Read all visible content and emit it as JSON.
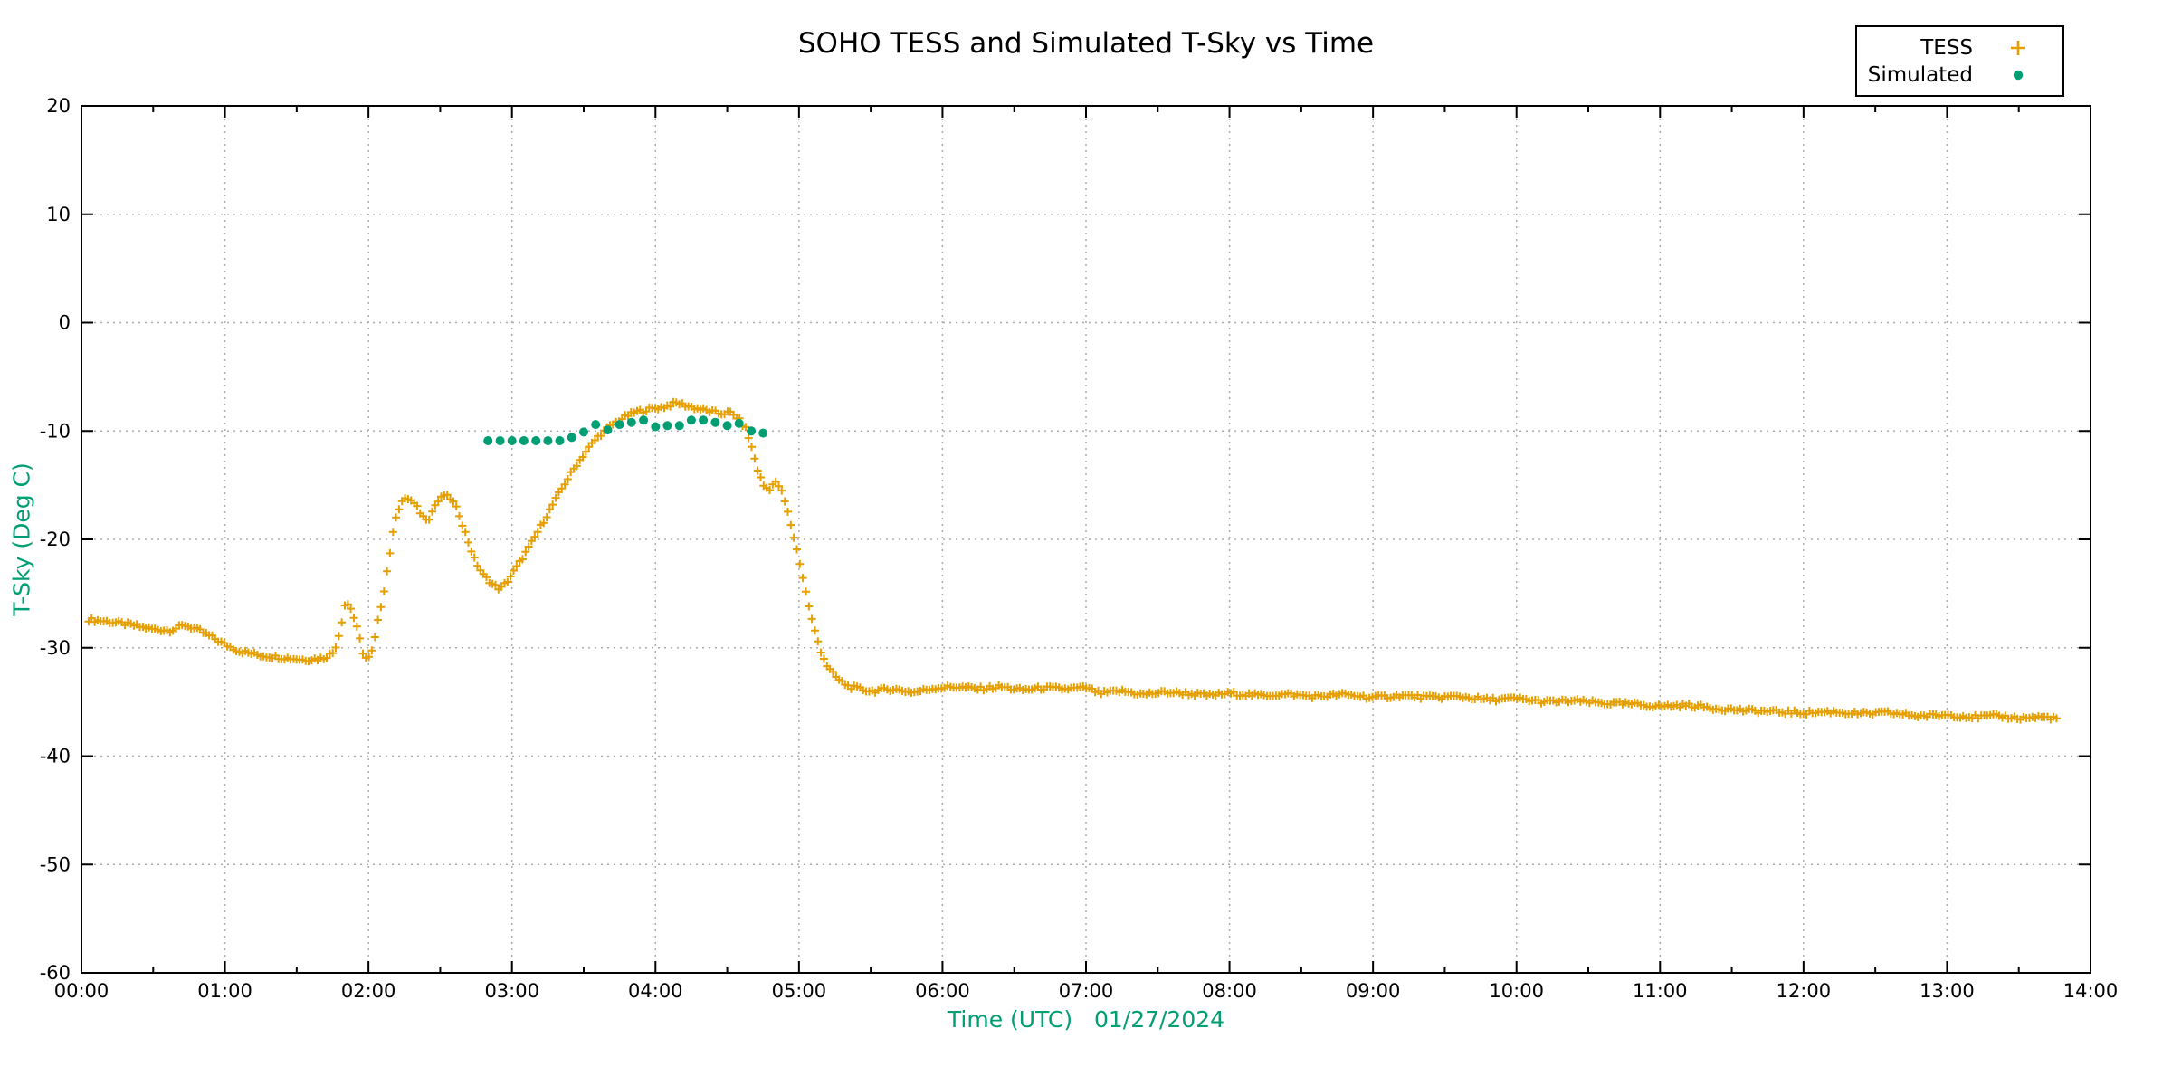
{
  "title": "SOHO TESS and Simulated T-Sky vs Time",
  "legend": {
    "entries": [
      {
        "label": "TESS",
        "marker": "plus-icon",
        "color": "#e69f00"
      },
      {
        "label": "Simulated",
        "marker": "dot-icon",
        "color": "#009e73"
      }
    ]
  },
  "axes": {
    "x": {
      "label": "Time (UTC)   01/27/2024",
      "tick_labels": [
        "00:00",
        "01:00",
        "02:00",
        "03:00",
        "04:00",
        "05:00",
        "06:00",
        "07:00",
        "08:00",
        "09:00",
        "10:00",
        "11:00",
        "12:00",
        "13:00",
        "14:00"
      ],
      "minor_ticks_per_hour": 2
    },
    "y": {
      "label": "T-Sky (Deg C)",
      "tick_values": [
        20,
        10,
        0,
        -10,
        -20,
        -30,
        -40,
        -50,
        -60
      ]
    }
  },
  "colors": {
    "tess": "#e69f00",
    "simulated": "#009e73",
    "axis_label": "#009e73",
    "grid": "#ababab",
    "border": "#000000",
    "text": "#000000"
  },
  "chart_data": {
    "type": "scatter",
    "title": "SOHO TESS and Simulated T-Sky vs Time",
    "xlabel": "Time (UTC)",
    "date_label": "01/27/2024",
    "ylabel": "T-Sky (Deg C)",
    "xlim_hours": [
      0,
      14
    ],
    "ylim": [
      -60,
      20
    ],
    "grid": true,
    "legend_position": "top-right-outside",
    "series": [
      {
        "name": "TESS",
        "marker": "plus",
        "color": "#e69f00",
        "sample_interval_hours": 0.021,
        "jitter_deg": 0.18,
        "time_start_hours": 0.05,
        "time_end_hours": 13.78,
        "keyframes_time_value": [
          [
            0.05,
            -27.4
          ],
          [
            0.2,
            -27.6
          ],
          [
            0.35,
            -27.9
          ],
          [
            0.5,
            -28.3
          ],
          [
            0.62,
            -28.4
          ],
          [
            0.72,
            -27.9
          ],
          [
            0.82,
            -28.4
          ],
          [
            0.92,
            -29.1
          ],
          [
            1.0,
            -29.7
          ],
          [
            1.1,
            -30.3
          ],
          [
            1.25,
            -30.7
          ],
          [
            1.4,
            -30.9
          ],
          [
            1.55,
            -31.1
          ],
          [
            1.68,
            -31.0
          ],
          [
            1.76,
            -30.4
          ],
          [
            1.8,
            -28.5
          ],
          [
            1.84,
            -25.7
          ],
          [
            1.88,
            -26.4
          ],
          [
            1.93,
            -28.7
          ],
          [
            1.97,
            -30.9
          ],
          [
            2.0,
            -31.0
          ],
          [
            2.03,
            -30.2
          ],
          [
            2.07,
            -27.3
          ],
          [
            2.11,
            -24.5
          ],
          [
            2.15,
            -21.2
          ],
          [
            2.19,
            -17.9
          ],
          [
            2.23,
            -16.5
          ],
          [
            2.28,
            -16.2
          ],
          [
            2.33,
            -16.9
          ],
          [
            2.38,
            -17.9
          ],
          [
            2.42,
            -18.1
          ],
          [
            2.47,
            -16.7
          ],
          [
            2.53,
            -15.9
          ],
          [
            2.58,
            -16.3
          ],
          [
            2.63,
            -17.6
          ],
          [
            2.68,
            -19.6
          ],
          [
            2.74,
            -21.9
          ],
          [
            2.8,
            -23.3
          ],
          [
            2.87,
            -24.2
          ],
          [
            2.92,
            -24.6
          ],
          [
            2.97,
            -23.8
          ],
          [
            3.05,
            -22.2
          ],
          [
            3.12,
            -20.7
          ],
          [
            3.2,
            -18.8
          ],
          [
            3.28,
            -16.9
          ],
          [
            3.36,
            -15.0
          ],
          [
            3.44,
            -13.3
          ],
          [
            3.52,
            -11.8
          ],
          [
            3.6,
            -10.5
          ],
          [
            3.68,
            -9.6
          ],
          [
            3.76,
            -8.9
          ],
          [
            3.85,
            -8.3
          ],
          [
            3.95,
            -8.0
          ],
          [
            4.05,
            -7.8
          ],
          [
            4.15,
            -7.4
          ],
          [
            4.25,
            -7.8
          ],
          [
            4.35,
            -8.1
          ],
          [
            4.45,
            -8.4
          ],
          [
            4.52,
            -8.3
          ],
          [
            4.58,
            -8.9
          ],
          [
            4.63,
            -9.8
          ],
          [
            4.67,
            -11.5
          ],
          [
            4.71,
            -13.5
          ],
          [
            4.75,
            -15.0
          ],
          [
            4.79,
            -15.4
          ],
          [
            4.83,
            -14.7
          ],
          [
            4.87,
            -15.2
          ],
          [
            4.91,
            -16.9
          ],
          [
            4.95,
            -19.0
          ],
          [
            5.0,
            -21.8
          ],
          [
            5.05,
            -25.0
          ],
          [
            5.1,
            -28.0
          ],
          [
            5.15,
            -30.2
          ],
          [
            5.2,
            -31.8
          ],
          [
            5.27,
            -32.9
          ],
          [
            5.35,
            -33.6
          ],
          [
            5.5,
            -34.0
          ],
          [
            5.65,
            -33.8
          ],
          [
            5.8,
            -34.1
          ],
          [
            5.95,
            -33.7
          ],
          [
            6.1,
            -33.6
          ],
          [
            6.25,
            -33.8
          ],
          [
            6.4,
            -33.6
          ],
          [
            6.55,
            -33.9
          ],
          [
            6.7,
            -33.7
          ],
          [
            6.85,
            -33.8
          ],
          [
            7.0,
            -33.7
          ],
          [
            7.1,
            -34.2
          ],
          [
            7.25,
            -34.0
          ],
          [
            7.4,
            -34.3
          ],
          [
            7.55,
            -34.1
          ],
          [
            7.7,
            -34.2
          ],
          [
            7.85,
            -34.4
          ],
          [
            8.0,
            -34.2
          ],
          [
            8.2,
            -34.4
          ],
          [
            8.4,
            -34.3
          ],
          [
            8.6,
            -34.5
          ],
          [
            8.8,
            -34.3
          ],
          [
            9.0,
            -34.6
          ],
          [
            9.2,
            -34.4
          ],
          [
            9.4,
            -34.6
          ],
          [
            9.6,
            -34.5
          ],
          [
            9.8,
            -34.8
          ],
          [
            10.0,
            -34.7
          ],
          [
            10.2,
            -35.0
          ],
          [
            10.4,
            -34.9
          ],
          [
            10.6,
            -35.1
          ],
          [
            10.8,
            -35.2
          ],
          [
            11.0,
            -35.4
          ],
          [
            11.2,
            -35.3
          ],
          [
            11.4,
            -35.6
          ],
          [
            11.6,
            -35.8
          ],
          [
            11.8,
            -35.9
          ],
          [
            12.0,
            -36.0
          ],
          [
            12.2,
            -35.9
          ],
          [
            12.4,
            -36.1
          ],
          [
            12.6,
            -36.0
          ],
          [
            12.8,
            -36.3
          ],
          [
            13.0,
            -36.2
          ],
          [
            13.2,
            -36.4
          ],
          [
            13.35,
            -36.3
          ],
          [
            13.5,
            -36.5
          ],
          [
            13.65,
            -36.4
          ],
          [
            13.78,
            -36.5
          ]
        ]
      },
      {
        "name": "Simulated",
        "marker": "dot",
        "color": "#009e73",
        "points_time_value": [
          [
            2.833,
            -10.9
          ],
          [
            2.917,
            -10.9
          ],
          [
            3.0,
            -10.9
          ],
          [
            3.083,
            -10.9
          ],
          [
            3.167,
            -10.9
          ],
          [
            3.25,
            -10.9
          ],
          [
            3.333,
            -10.9
          ],
          [
            3.417,
            -10.6
          ],
          [
            3.5,
            -10.1
          ],
          [
            3.583,
            -9.4
          ],
          [
            3.667,
            -9.9
          ],
          [
            3.75,
            -9.4
          ],
          [
            3.833,
            -9.2
          ],
          [
            3.917,
            -9.0
          ],
          [
            4.0,
            -9.6
          ],
          [
            4.083,
            -9.5
          ],
          [
            4.167,
            -9.5
          ],
          [
            4.25,
            -9.0
          ],
          [
            4.333,
            -9.0
          ],
          [
            4.417,
            -9.2
          ],
          [
            4.5,
            -9.5
          ],
          [
            4.583,
            -9.3
          ],
          [
            4.667,
            -10.0
          ],
          [
            4.75,
            -10.2
          ]
        ]
      }
    ]
  }
}
